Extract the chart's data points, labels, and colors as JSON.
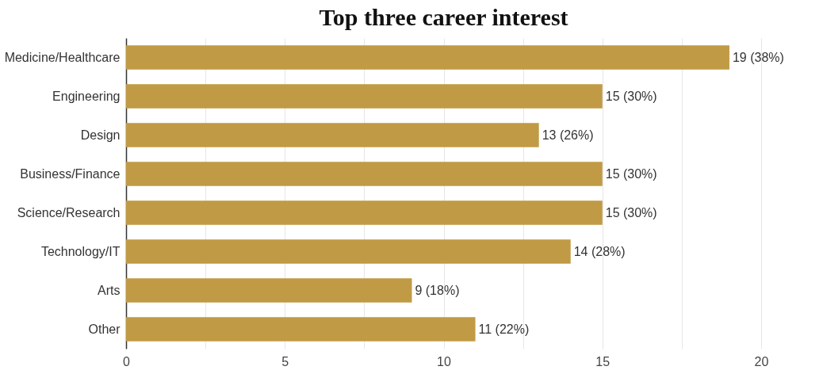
{
  "chart_data": {
    "type": "bar",
    "orientation": "horizontal",
    "title": "Top three career interest",
    "categories": [
      "Medicine/Healthcare",
      "Engineering",
      "Design",
      "Business/Finance",
      "Science/Research",
      "Technology/IT",
      "Arts",
      "Other"
    ],
    "values": [
      19,
      15,
      13,
      15,
      15,
      14,
      9,
      11
    ],
    "value_labels": [
      "19 (38%)",
      "15 (30%)",
      "13 (26%)",
      "15 (30%)",
      "15 (30%)",
      "14 (28%)",
      "9 (18%)",
      "11 (22%)"
    ],
    "color": "#c09a45",
    "xlim": [
      0,
      20
    ],
    "xticks": [
      0,
      {
        "value": 2.5,
        "label": null
      },
      5,
      {
        "value": 7.5,
        "label": null
      },
      10,
      {
        "value": 12.5,
        "label": null
      },
      15,
      {
        "value": 17.5,
        "label": null
      },
      20
    ],
    "grid": "x"
  }
}
